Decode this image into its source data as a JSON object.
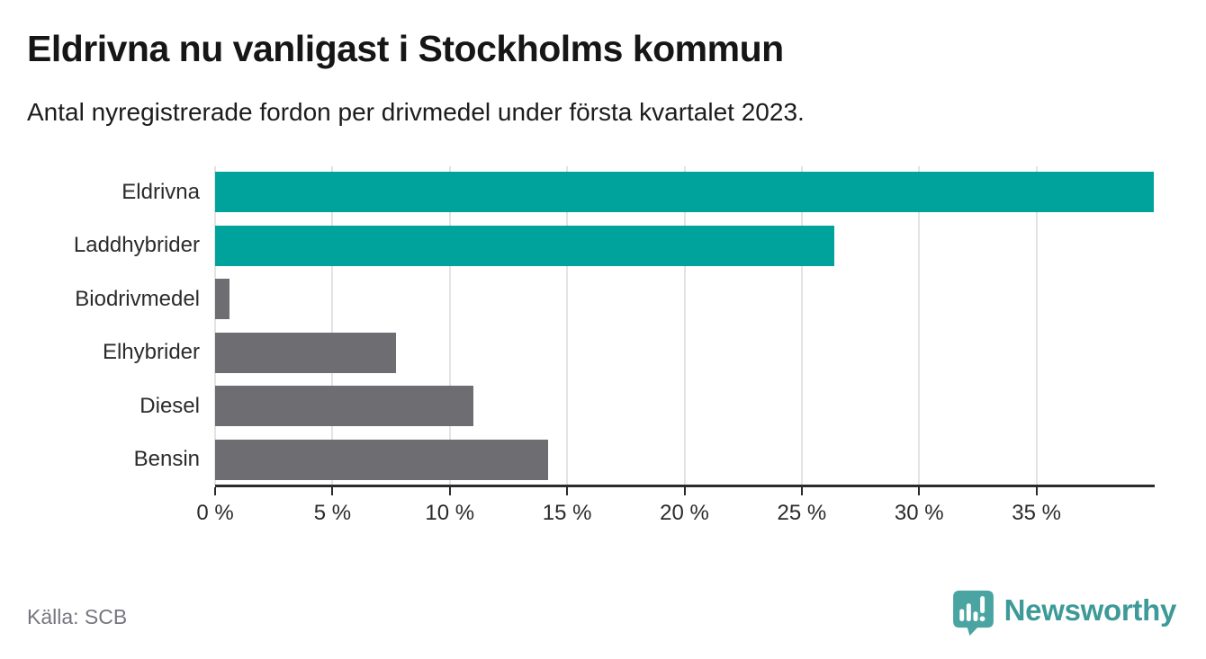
{
  "header": {
    "title": "Eldrivna nu vanligast i Stockholms kommun",
    "subtitle": "Antal nyregistrerade fordon per drivmedel under första kvartalet 2023."
  },
  "chart_data": {
    "type": "bar",
    "orientation": "horizontal",
    "title": "Eldrivna nu vanligast i Stockholms kommun",
    "subtitle": "Antal nyregistrerade fordon per drivmedel under första kvartalet 2023.",
    "categories": [
      "Eldrivna",
      "Laddhybrider",
      "Biodrivmedel",
      "Elhybrider",
      "Diesel",
      "Bensin"
    ],
    "values": [
      40.0,
      26.4,
      0.6,
      7.7,
      11.0,
      14.2
    ],
    "unit": "%",
    "highlighted_categories": [
      "Eldrivna",
      "Laddhybrider"
    ],
    "bar_colors": [
      "#00a39b",
      "#00a39b",
      "#6e6e72",
      "#6e6e72",
      "#6e6e72",
      "#6e6e72"
    ],
    "xlabel": "",
    "ylabel": "",
    "xlim": [
      0,
      40
    ],
    "x_ticks": [
      {
        "value": 0,
        "label": "0 %"
      },
      {
        "value": 5,
        "label": "5 %"
      },
      {
        "value": 10,
        "label": "10 %"
      },
      {
        "value": 15,
        "label": "15 %"
      },
      {
        "value": 20,
        "label": "20 %"
      },
      {
        "value": 25,
        "label": "25 %"
      },
      {
        "value": 30,
        "label": "30 %"
      },
      {
        "value": 35,
        "label": "35 %"
      }
    ],
    "grid": true,
    "legend": false
  },
  "footer": {
    "source": "Källa: SCB",
    "brand": "Newsworthy"
  },
  "colors": {
    "highlight": "#00a39b",
    "neutral": "#6e6e72",
    "axis": "#2b2b2b",
    "gridline": "#e3e3e3",
    "text": "#161616",
    "muted_text": "#76767f",
    "brand_teal": "#3d9a98",
    "brand_icon": "#4aa5a2"
  }
}
